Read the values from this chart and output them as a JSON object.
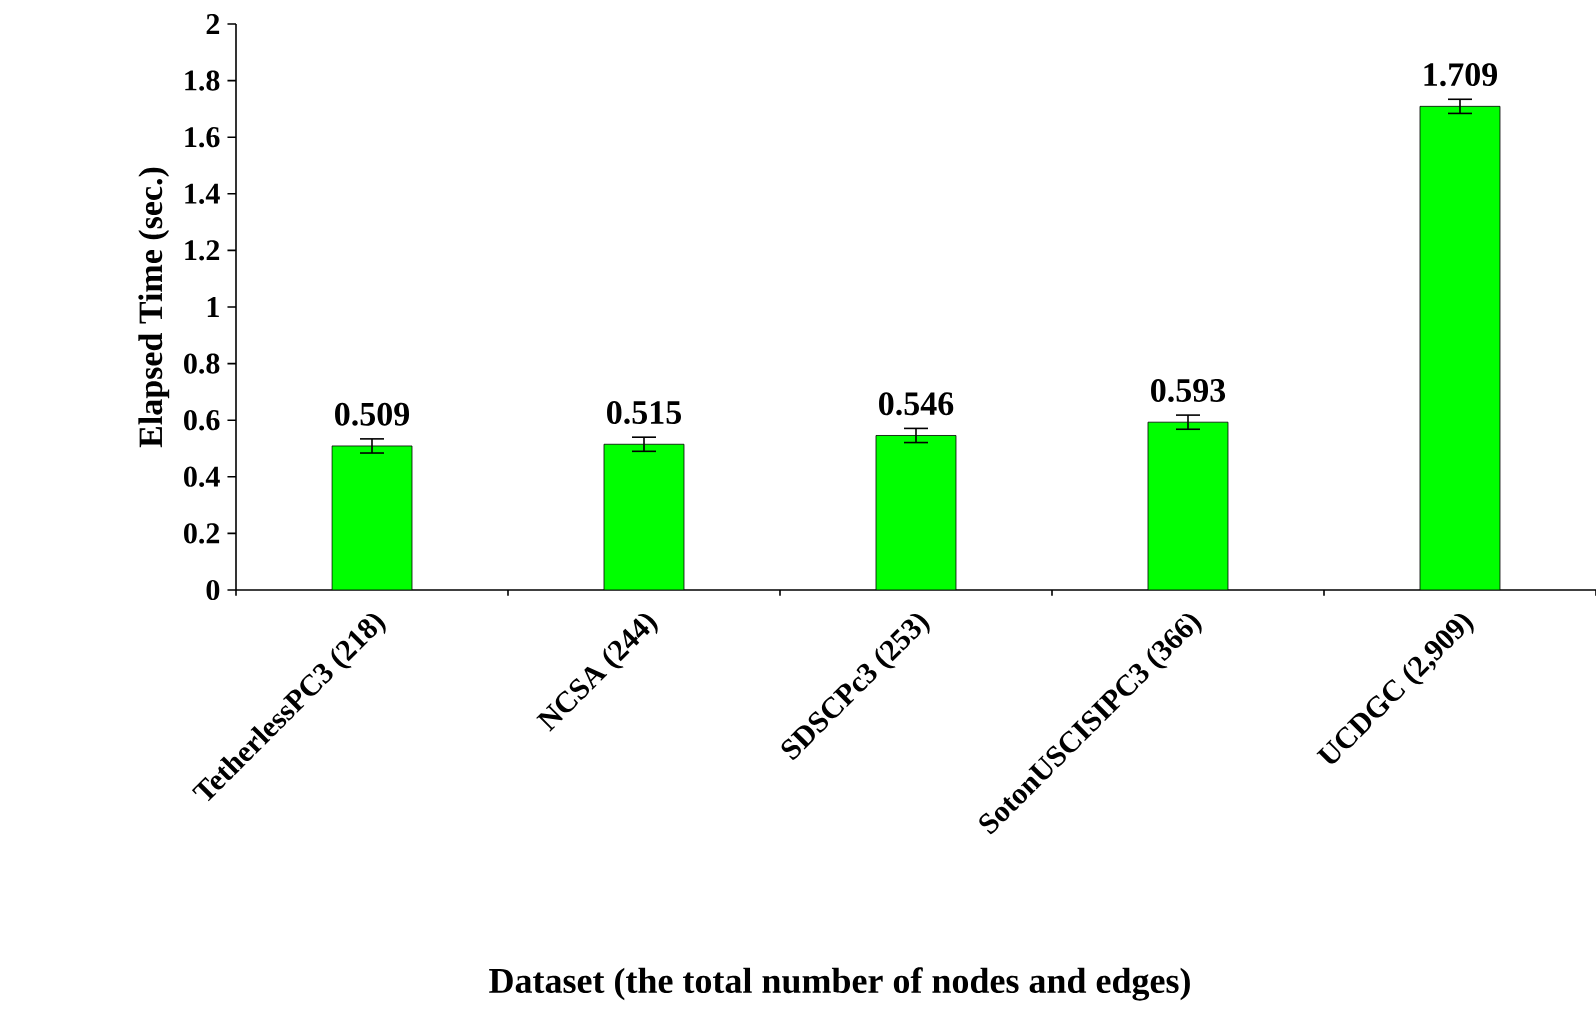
{
  "chart_data": {
    "type": "bar",
    "xlabel": "Dataset (the total number of nodes and edges)",
    "ylabel": "Elapsed Time (sec.)",
    "categories": [
      "TetherlessPC3 (218)",
      "NCSA (244)",
      "SDSCPc3 (253)",
      "SotonUSCISIPC3 (366)",
      "UCDGC (2,909)"
    ],
    "values": [
      0.509,
      0.515,
      0.546,
      0.593,
      1.709
    ],
    "errors": [
      0.025,
      0.025,
      0.025,
      0.025,
      0.025
    ],
    "color": "#00ff00",
    "data_labels": true,
    "ylim": [
      0,
      2
    ],
    "yticks": [
      0,
      0.2,
      0.4,
      0.6,
      0.8,
      1,
      1.2,
      1.4,
      1.6,
      1.8,
      2
    ]
  }
}
